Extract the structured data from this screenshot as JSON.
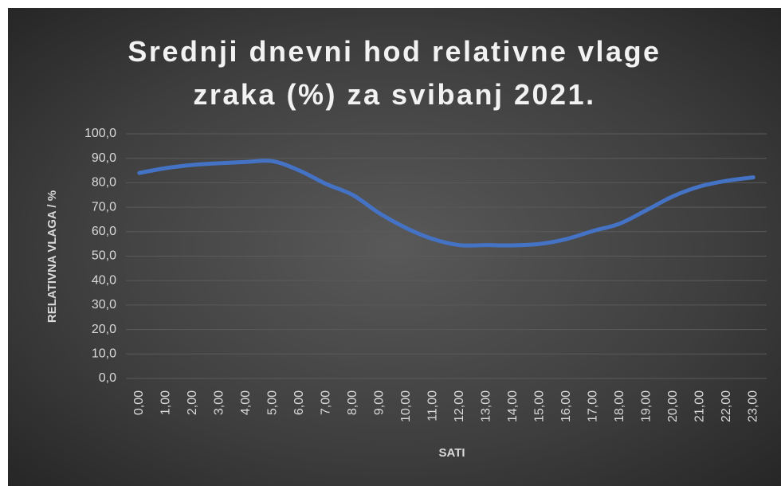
{
  "chart_data": {
    "type": "line",
    "title": "Srednji dnevni hod relativne vlage zraka (%) za svibanj 2021.",
    "x_label": "SATI",
    "y_label": "RELATIVNA VLAGA / %",
    "categories": [
      "0,00",
      "1,00",
      "2,00",
      "3,00",
      "4,00",
      "5,00",
      "6,00",
      "7,00",
      "8,00",
      "9,00",
      "10,00",
      "11,00",
      "12,00",
      "13,00",
      "14,00",
      "15,00",
      "16,00",
      "17,00",
      "18,00",
      "19,00",
      "20,00",
      "21,00",
      "22,00",
      "23,00"
    ],
    "values": [
      84,
      86,
      87.3,
      88,
      88.5,
      88.8,
      85,
      79.5,
      75,
      67.5,
      61.5,
      57,
      54.5,
      54.5,
      54.4,
      55,
      57,
      60.3,
      63.3,
      68.8,
      74.5,
      78.5,
      80.8,
      82.2
    ],
    "color": "#4472c4",
    "ylim": [
      0,
      100
    ],
    "yticks": [
      {
        "value": 0,
        "label": "0,0"
      },
      {
        "value": 10,
        "label": "10,0"
      },
      {
        "value": 20,
        "label": "20,0"
      },
      {
        "value": 30,
        "label": "30,0"
      },
      {
        "value": 40,
        "label": "40,0"
      },
      {
        "value": 50,
        "label": "50,0"
      },
      {
        "value": 60,
        "label": "60,0"
      },
      {
        "value": 70,
        "label": "70,0"
      },
      {
        "value": 80,
        "label": "80,0"
      },
      {
        "value": 90,
        "label": "90,0"
      },
      {
        "value": 100,
        "label": "100,0"
      }
    ],
    "grid": true
  }
}
